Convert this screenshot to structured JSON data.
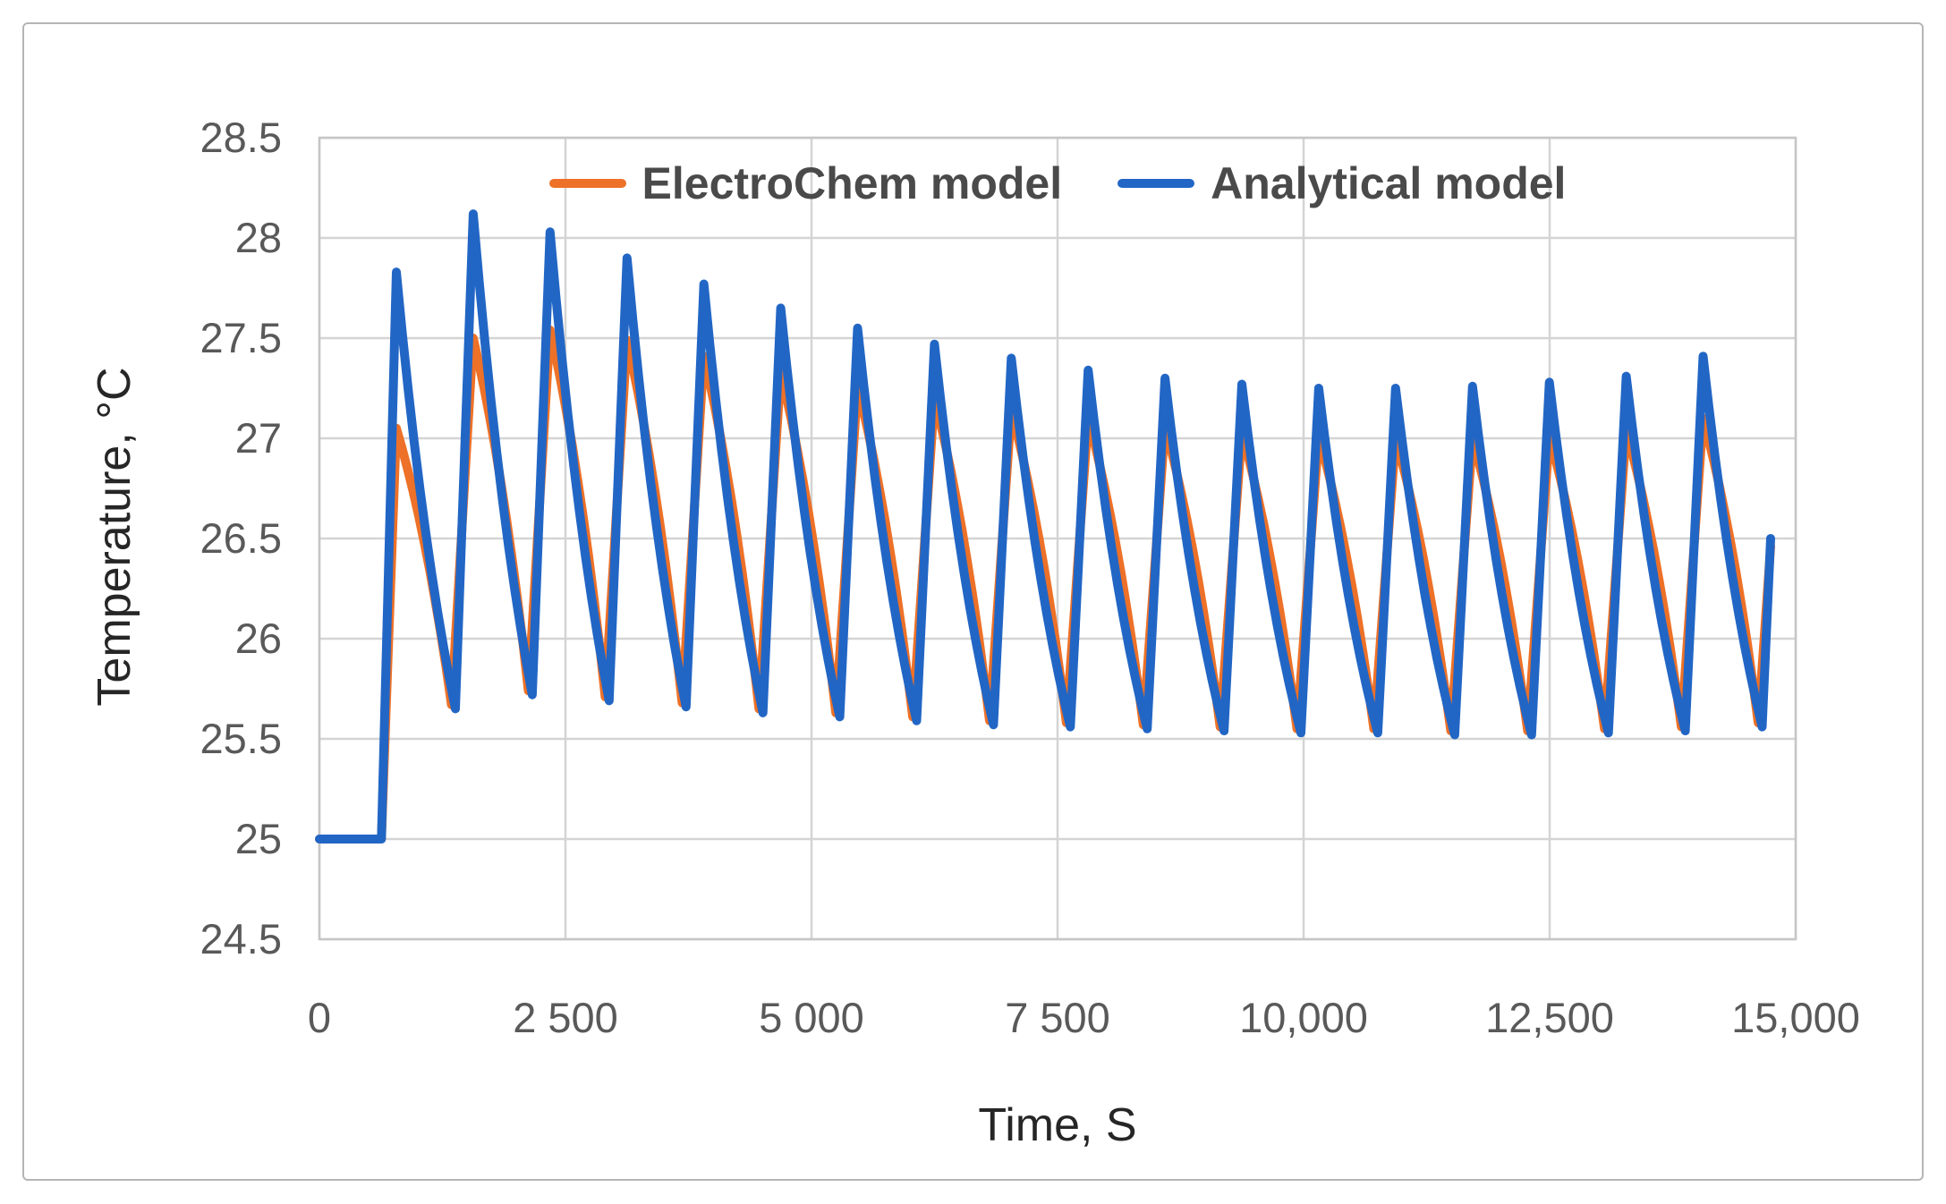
{
  "text": {
    "tick_color": "#595959",
    "title_color": "#262626",
    "legend_color": "#4A4A4A"
  },
  "frame": {
    "border_color": "#B5B5B5"
  },
  "grid_color": "#D4D4D4",
  "plot_border_color": "#C6C6C6",
  "chart_data": {
    "type": "line",
    "title": "",
    "xlabel": "Time, S",
    "ylabel": "Temperature, °C",
    "xlim": [
      0,
      15000
    ],
    "ylim": [
      24.5,
      28.5
    ],
    "grid": true,
    "legend_position": "top-inside",
    "line_width": 10,
    "x_ticks": [
      {
        "t": 0,
        "label": "0"
      },
      {
        "t": 2500,
        "label": "2 500"
      },
      {
        "t": 5000,
        "label": "5 000"
      },
      {
        "t": 7500,
        "label": "7 500"
      },
      {
        "t": 10000,
        "label": "10,000"
      },
      {
        "t": 12500,
        "label": "12,500"
      },
      {
        "t": 15000,
        "label": "15,000"
      }
    ],
    "y_ticks": [
      {
        "v": 28.5,
        "label": "28.5"
      },
      {
        "v": 28,
        "label": "28"
      },
      {
        "v": 27.5,
        "label": "27.5"
      },
      {
        "v": 27,
        "label": "27"
      },
      {
        "v": 26.5,
        "label": "26.5"
      },
      {
        "v": 26,
        "label": "26"
      },
      {
        "v": 25.5,
        "label": "25.5"
      },
      {
        "v": 25,
        "label": "25"
      },
      {
        "v": 24.5,
        "label": "24.5"
      }
    ],
    "series": [
      {
        "name": "ElectroChem model",
        "key": "electrochem",
        "color": "#ED7128",
        "decay_shape": -0.75,
        "trough_lead_s": 40
      },
      {
        "name": "Analytical model",
        "key": "analytical",
        "color": "#2266C5",
        "decay_shape": 0.8,
        "trough_lead_s": 0
      }
    ],
    "baseline": {
      "start_t": 0,
      "end_t": 630,
      "value": 25
    },
    "cycles": [
      {
        "peak_t": 782,
        "analytical_peak": 27.83,
        "electrochem_peak": 27.05,
        "trough_t": 1382,
        "analytical_trough": 25.65,
        "electrochem_trough": 25.67
      },
      {
        "peak_t": 1563,
        "analytical_peak": 28.12,
        "electrochem_peak": 27.5,
        "trough_t": 2163,
        "analytical_trough": 25.72,
        "electrochem_trough": 25.74
      },
      {
        "peak_t": 2344,
        "analytical_peak": 28.03,
        "electrochem_peak": 27.54,
        "trough_t": 2944,
        "analytical_trough": 25.69,
        "electrochem_trough": 25.71
      },
      {
        "peak_t": 3125,
        "analytical_peak": 27.9,
        "electrochem_peak": 27.49,
        "trough_t": 3725,
        "analytical_trough": 25.66,
        "electrochem_trough": 25.68
      },
      {
        "peak_t": 3906,
        "analytical_peak": 27.77,
        "electrochem_peak": 27.41,
        "trough_t": 4506,
        "analytical_trough": 25.63,
        "electrochem_trough": 25.65
      },
      {
        "peak_t": 4687,
        "analytical_peak": 27.65,
        "electrochem_peak": 27.33,
        "trough_t": 5287,
        "analytical_trough": 25.61,
        "electrochem_trough": 25.63
      },
      {
        "peak_t": 5468,
        "analytical_peak": 27.55,
        "electrochem_peak": 27.26,
        "trough_t": 6068,
        "analytical_trough": 25.59,
        "electrochem_trough": 25.61
      },
      {
        "peak_t": 6249,
        "analytical_peak": 27.47,
        "electrochem_peak": 27.2,
        "trough_t": 6849,
        "analytical_trough": 25.57,
        "electrochem_trough": 25.59
      },
      {
        "peak_t": 7030,
        "analytical_peak": 27.4,
        "electrochem_peak": 27.14,
        "trough_t": 7630,
        "analytical_trough": 25.56,
        "electrochem_trough": 25.58
      },
      {
        "peak_t": 7811,
        "analytical_peak": 27.34,
        "electrochem_peak": 27.1,
        "trough_t": 8411,
        "analytical_trough": 25.55,
        "electrochem_trough": 25.57
      },
      {
        "peak_t": 8592,
        "analytical_peak": 27.3,
        "electrochem_peak": 27.06,
        "trough_t": 9192,
        "analytical_trough": 25.54,
        "electrochem_trough": 25.56
      },
      {
        "peak_t": 9373,
        "analytical_peak": 27.27,
        "electrochem_peak": 27.03,
        "trough_t": 9973,
        "analytical_trough": 25.53,
        "electrochem_trough": 25.55
      },
      {
        "peak_t": 10154,
        "analytical_peak": 27.25,
        "electrochem_peak": 27.01,
        "trough_t": 10754,
        "analytical_trough": 25.53,
        "electrochem_trough": 25.55
      },
      {
        "peak_t": 10935,
        "analytical_peak": 27.25,
        "electrochem_peak": 27.0,
        "trough_t": 11535,
        "analytical_trough": 25.52,
        "electrochem_trough": 25.54
      },
      {
        "peak_t": 11716,
        "analytical_peak": 27.26,
        "electrochem_peak": 27.0,
        "trough_t": 12316,
        "analytical_trough": 25.52,
        "electrochem_trough": 25.54
      },
      {
        "peak_t": 12497,
        "analytical_peak": 27.28,
        "electrochem_peak": 27.01,
        "trough_t": 13097,
        "analytical_trough": 25.53,
        "electrochem_trough": 25.55
      },
      {
        "peak_t": 13278,
        "analytical_peak": 27.31,
        "electrochem_peak": 27.04,
        "trough_t": 13878,
        "analytical_trough": 25.54,
        "electrochem_trough": 25.56
      },
      {
        "peak_t": 14059,
        "analytical_peak": 27.41,
        "electrochem_peak": 27.1,
        "trough_t": 14659,
        "analytical_trough": 25.56,
        "electrochem_trough": 25.58
      }
    ],
    "final_segment": {
      "end_t": 14745,
      "analytical_end": 26.5,
      "electrochem_end": 26.46
    }
  }
}
